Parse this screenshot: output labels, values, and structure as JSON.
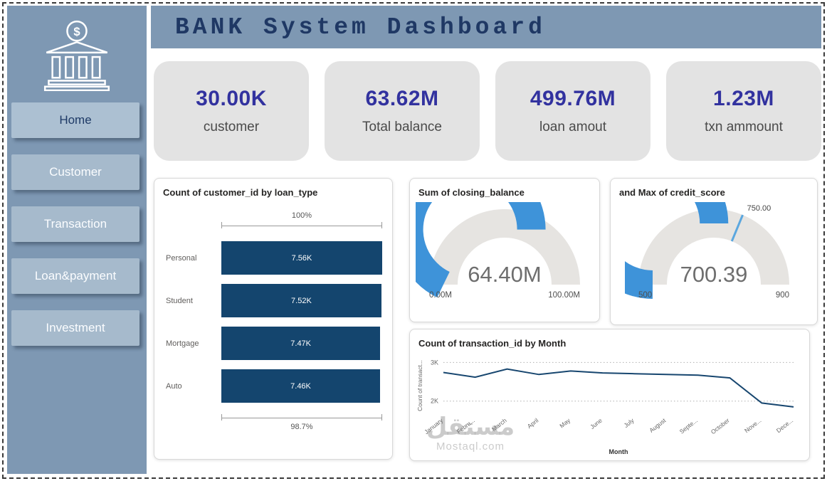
{
  "header": {
    "title": "BANK System Dashboard"
  },
  "sidebar": {
    "logo_icon": "bank-icon",
    "items": [
      {
        "label": "Home",
        "active": true
      },
      {
        "label": "Customer",
        "active": false
      },
      {
        "label": "Transaction",
        "active": false
      },
      {
        "label": "Loan&payment",
        "active": false
      },
      {
        "label": "Investment",
        "active": false
      }
    ]
  },
  "kpis": [
    {
      "value": "30.00K",
      "label": "customer"
    },
    {
      "value": "63.62M",
      "label": "Total balance"
    },
    {
      "value": "499.76M",
      "label": "loan amout"
    },
    {
      "value": "1.23M",
      "label": "txn ammount"
    }
  ],
  "colors": {
    "sidebar": "#7E98B3",
    "header": "#7E98B3",
    "kpi_value": "#32329F",
    "kpi_card": "#E3E3E3",
    "bar": "#14456E",
    "gauge_fill": "#3E93D9",
    "gauge_track": "#E6E4E1",
    "line": "#17466F",
    "title_text": "#1F3864"
  },
  "watermark": {
    "line1": "مستقل",
    "line2": "Mostaql.com"
  },
  "chart_data": [
    {
      "id": "loan_type_bar",
      "type": "bar",
      "orientation": "horizontal",
      "title": "Count of customer_id by loan_type",
      "categories": [
        "Personal",
        "Student",
        "Mortgage",
        "Auto"
      ],
      "values": [
        7560,
        7520,
        7470,
        7460
      ],
      "value_labels": [
        "7.56K",
        "7.52K",
        "7.47K",
        "7.46K"
      ],
      "top_bracket_label": "100%",
      "bottom_bracket_label": "98.7%",
      "bar_color": "#14456E"
    },
    {
      "id": "closing_balance_gauge",
      "type": "gauge",
      "title": "Sum of closing_balance",
      "min": 0,
      "max": 100,
      "min_label": "0.00M",
      "max_label": "100.00M",
      "value": 64.4,
      "value_label": "64.40M",
      "fill_color": "#3E93D9",
      "track_color": "#E6E4E1"
    },
    {
      "id": "credit_score_gauge",
      "type": "gauge",
      "title": "and Max of credit_score",
      "min": 500,
      "max": 900,
      "min_label": "500",
      "max_label": "900",
      "value": 700.39,
      "value_label": "700.39",
      "target": 750,
      "target_label": "750.00",
      "fill_color": "#3E93D9",
      "track_color": "#E6E4E1"
    },
    {
      "id": "txn_by_month_line",
      "type": "line",
      "title": "Count of transaction_id by Month",
      "xlabel": "Month",
      "ylabel": "Count of transact...",
      "categories": [
        "January",
        "Febru...",
        "March",
        "April",
        "May",
        "June",
        "July",
        "August",
        "Septe...",
        "October",
        "Nove...",
        "Dece..."
      ],
      "values": [
        2740,
        2620,
        2830,
        2690,
        2780,
        2730,
        2710,
        2690,
        2670,
        2600,
        1950,
        1850
      ],
      "yticks": [
        2000,
        3000
      ],
      "ytick_labels": [
        "2K",
        "3K"
      ],
      "ylim": [
        1700,
        3100
      ],
      "grid": "dotted",
      "line_color": "#17466F"
    }
  ]
}
